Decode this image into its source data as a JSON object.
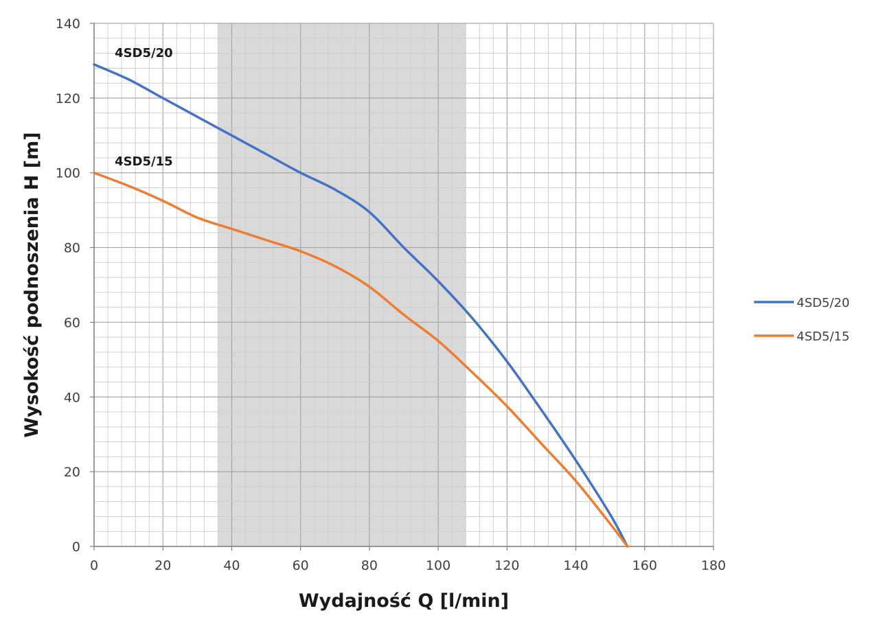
{
  "chart_data": {
    "type": "line",
    "xlabel": "Wydajność Q [l/min]",
    "ylabel": "Wysokość podnoszenia H [m]",
    "xlim": [
      0,
      180
    ],
    "ylim": [
      0,
      140
    ],
    "x_ticks": [
      "0",
      "20",
      "40",
      "60",
      "80",
      "100",
      "120",
      "140",
      "160",
      "180"
    ],
    "y_ticks": [
      "0",
      "20",
      "40",
      "60",
      "80",
      "100",
      "120",
      "140"
    ],
    "x_minor_step": 4,
    "y_minor_step": 4,
    "grid": true,
    "highlight_band": {
      "x_range": [
        36,
        108
      ],
      "color": "#d9d9d9"
    },
    "legend_position": "right",
    "series": [
      {
        "name": "4SD5/20",
        "color": "#4472c4",
        "x": [
          0,
          10,
          20,
          30,
          40,
          50,
          60,
          70,
          80,
          90,
          100,
          110,
          120,
          130,
          140,
          150,
          155
        ],
        "y": [
          129,
          125,
          120,
          115,
          110,
          105,
          100,
          95.5,
          89.5,
          80,
          71,
          61,
          49.5,
          36.5,
          23,
          8.5,
          0
        ]
      },
      {
        "name": "4SD5/15",
        "color": "#ed7d31",
        "x": [
          0,
          10,
          20,
          30,
          40,
          50,
          60,
          70,
          80,
          90,
          100,
          110,
          120,
          130,
          140,
          150,
          155
        ],
        "y": [
          100,
          96.5,
          92.5,
          88,
          85,
          82,
          79,
          75,
          69.5,
          62,
          55,
          46.5,
          37.5,
          27.5,
          17.5,
          6,
          0
        ]
      }
    ],
    "curve_labels": [
      {
        "text": "4SD5/20",
        "x": 6,
        "y": 131
      },
      {
        "text": "4SD5/15",
        "x": 6,
        "y": 102
      }
    ]
  }
}
